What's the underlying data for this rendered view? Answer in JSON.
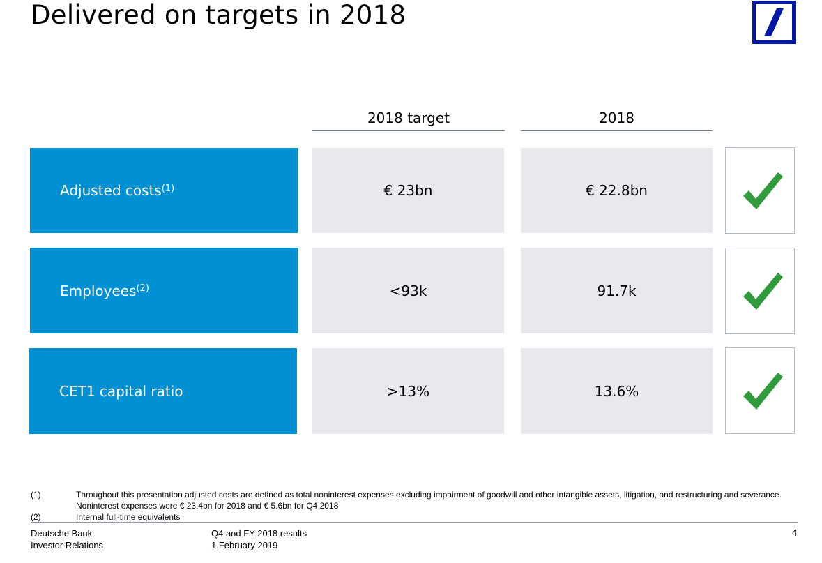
{
  "title": "Delivered on targets in 2018",
  "logo": {
    "brand_color": "#0018a8"
  },
  "table": {
    "columns": [
      "2018 target",
      "2018"
    ],
    "rows": [
      {
        "label": "Adjusted costs",
        "note": "(1)",
        "target": "€ 23bn",
        "actual": "€ 22.8bn",
        "status_icon": "check-icon"
      },
      {
        "label": "Employees",
        "note": "(2)",
        "target": "<93k",
        "actual": "91.7k",
        "status_icon": "check-icon"
      },
      {
        "label": "CET1 capital ratio",
        "note": "",
        "target": ">13%",
        "actual": "13.6%",
        "status_icon": "check-icon"
      }
    ],
    "label_color": "#0090d3",
    "value_bg": "#e7e9ec",
    "check_color": "#2f9b3a"
  },
  "footnotes": [
    {
      "num": "(1)",
      "text": "Throughout this presentation adjusted costs are defined as total noninterest expenses excluding impairment of goodwill and other intangible assets, litigation, and restructuring and severance. Noninterest expenses were € 23.4bn for 2018 and € 5.6bn for Q4 2018"
    },
    {
      "num": "(2)",
      "text": "Internal full-time equivalents"
    }
  ],
  "footer": {
    "org_line1": "Deutsche Bank",
    "org_line2": "Investor Relations",
    "doc_line1": "Q4 and FY 2018 results",
    "doc_line2": "1 February 2019",
    "page": "4"
  }
}
